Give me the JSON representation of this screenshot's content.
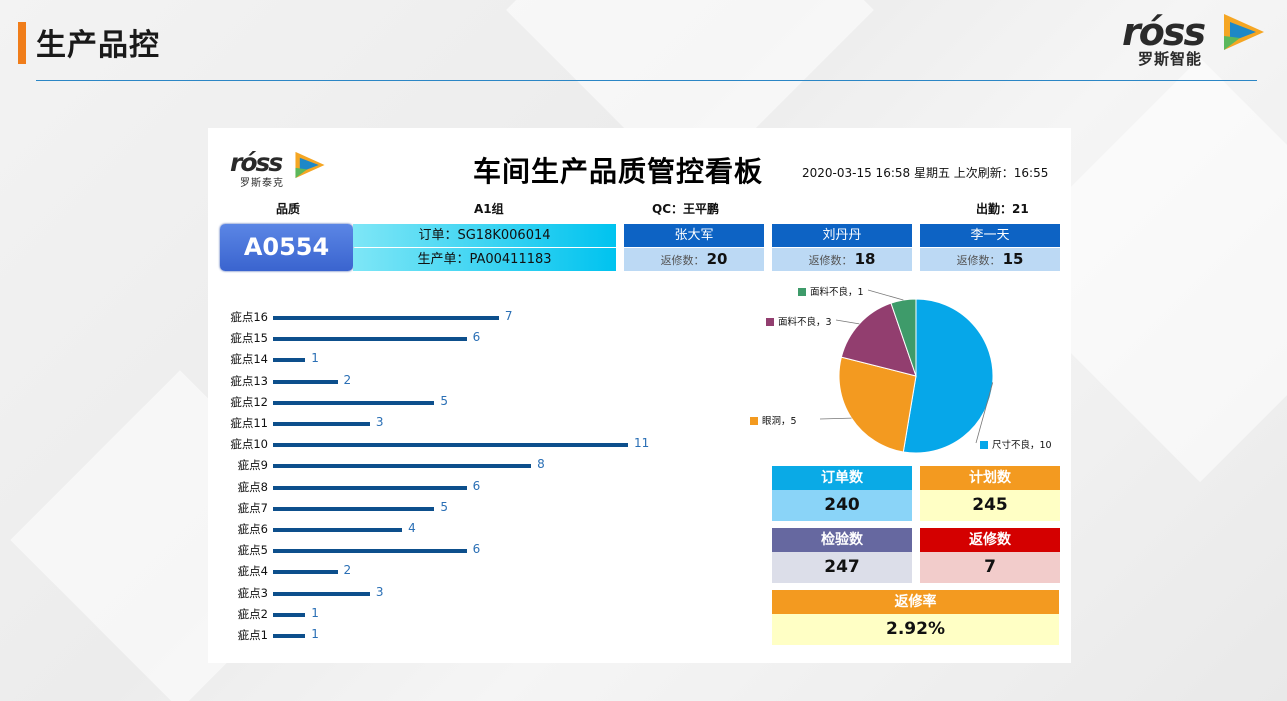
{
  "slide": {
    "title": "生产品控"
  },
  "brand": {
    "word": "róss",
    "sub": "罗斯智能"
  },
  "board": {
    "logo_word": "róss",
    "logo_sub": "罗斯泰克",
    "title": "车间生产品质管控看板",
    "datetime": "2020-03-15  16:58 星期五  上次刷新：16:55"
  },
  "info": {
    "dept": "品质",
    "group": "A1组",
    "qc": "QC：王平鹏",
    "attendance": "出勤：21"
  },
  "code": "A0554",
  "order": {
    "order_no": "订单：SG18K006014",
    "prod_no": "生产单：PA00411183"
  },
  "workers": [
    {
      "name": "张大军",
      "count_label": "返修数：",
      "count": "20"
    },
    {
      "name": "刘丹丹",
      "count_label": "返修数：",
      "count": "18"
    },
    {
      "name": "李一天",
      "count_label": "返修数：",
      "count": "15"
    }
  ],
  "chart_data": [
    {
      "type": "bar",
      "orientation": "horizontal",
      "categories": [
        "疵点16",
        "疵点15",
        "疵点14",
        "疵点13",
        "疵点12",
        "疵点11",
        "疵点10",
        "疵点9",
        "疵点8",
        "疵点7",
        "疵点6",
        "疵点5",
        "疵点4",
        "疵点3",
        "疵点2",
        "疵点1"
      ],
      "values": [
        7,
        6,
        1,
        2,
        5,
        3,
        11,
        8,
        6,
        5,
        4,
        6,
        2,
        3,
        1,
        1
      ],
      "bar_color": "#0d4f8c",
      "grid": false
    },
    {
      "type": "pie",
      "slices": [
        {
          "label": "尺寸不良，10",
          "value": 10,
          "color": "#06a7e9"
        },
        {
          "label": "眼洞，5",
          "value": 5,
          "color": "#f39a20"
        },
        {
          "label": "面料不良，3",
          "value": 3,
          "color": "#923e6f"
        },
        {
          "label": "面料不良，1",
          "value": 1,
          "color": "#3e9b6a"
        }
      ]
    }
  ],
  "stats": {
    "orders": {
      "label": "订单数",
      "value": "240",
      "head_color": "#0aaae6",
      "body_color": "#8ad4f8"
    },
    "plan": {
      "label": "计划数",
      "value": "245",
      "head_color": "#f39a20",
      "body_color": "#ffffc5"
    },
    "inspect": {
      "label": "检验数",
      "value": "247",
      "head_color": "#6668a0",
      "body_color": "#dcdee9"
    },
    "repair": {
      "label": "返修数",
      "value": "7",
      "head_color": "#d40000",
      "body_color": "#f2cccb"
    },
    "rate": {
      "label": "返修率",
      "value": "2.92%",
      "head_color": "#f39a20",
      "body_color": "#ffffc5"
    }
  }
}
